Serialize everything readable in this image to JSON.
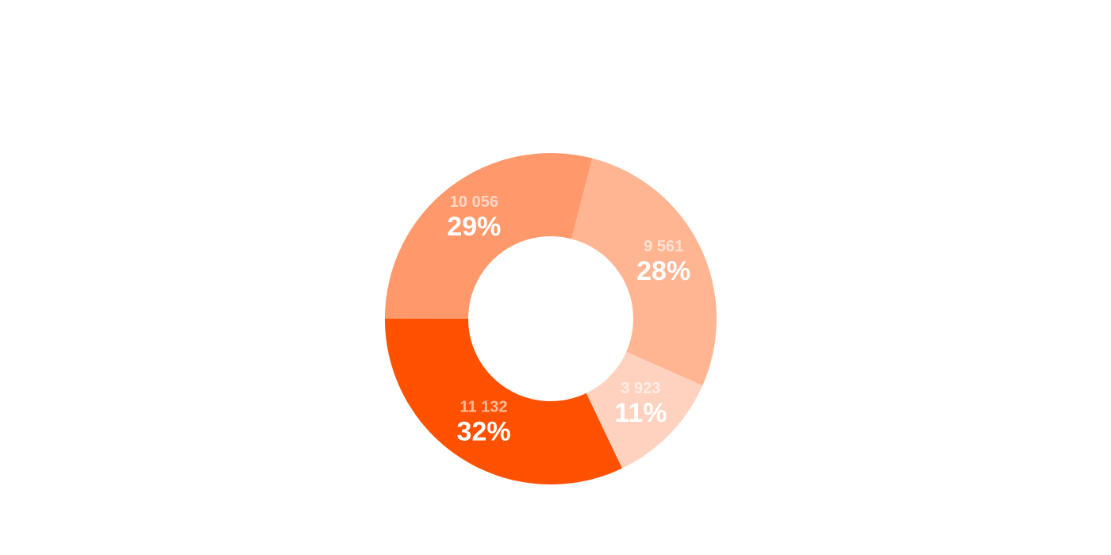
{
  "chart_data": {
    "type": "pie",
    "variant": "donut",
    "legend": "none",
    "start_angle_deg": 14.5,
    "direction": "clockwise",
    "slices": [
      {
        "value": 9561,
        "value_label": "9 561",
        "percent_label": "28%",
        "color": "#ffb592"
      },
      {
        "value": 3923,
        "value_label": "3 923",
        "percent_label": "11%",
        "color": "#ffd2c0"
      },
      {
        "value": 11132,
        "value_label": "11 132",
        "percent_label": "32%",
        "color": "#ff5100"
      },
      {
        "value": 10056,
        "value_label": "10 056",
        "percent_label": "29%",
        "color": "#ff996c"
      }
    ]
  }
}
